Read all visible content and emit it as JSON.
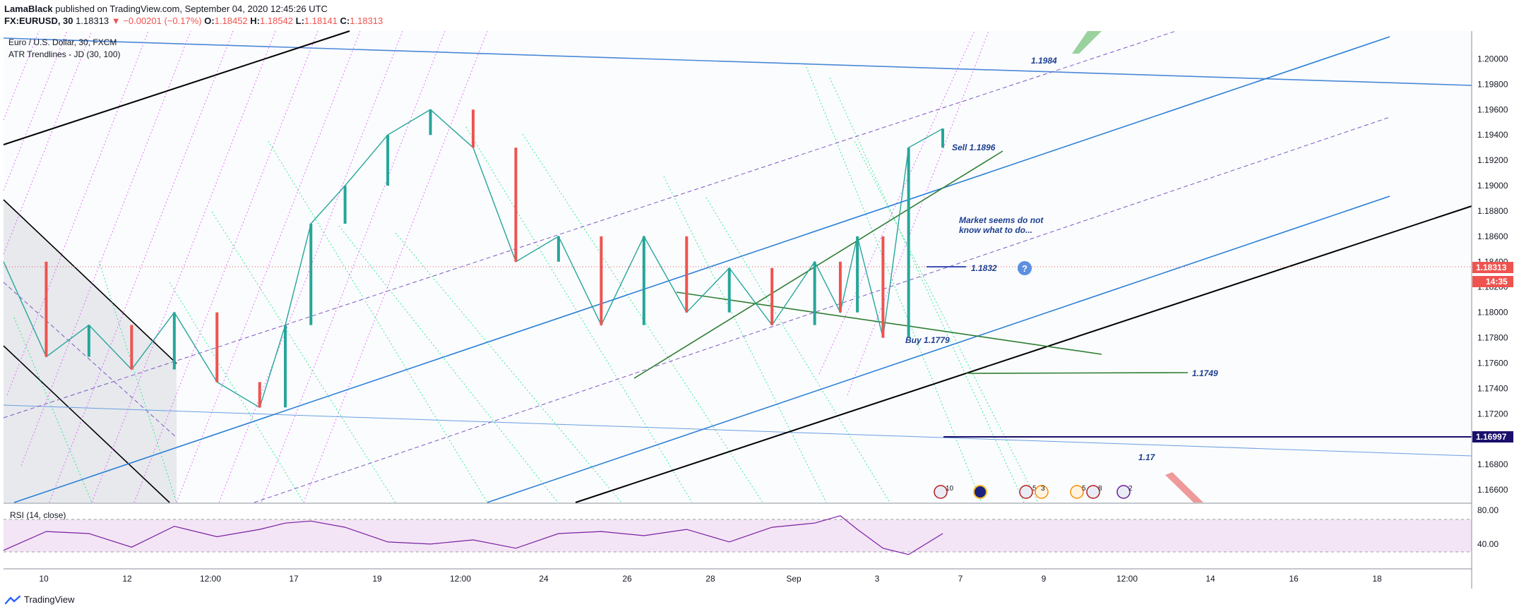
{
  "publish": {
    "author": "LamaBlack",
    "text": " published on TradingView.com, September 04, 2020 12:45:26 UTC"
  },
  "quote": {
    "symbol": "FX:EURUSD, 30",
    "last": "1.18313",
    "arrow": "▼",
    "change": "−0.00201 (−0.17%)",
    "open_label": "O:",
    "open": "1.18452",
    "high_label": "H:",
    "high": "1.18542",
    "low_label": "L:",
    "low": "1.18141",
    "close_label": "C:",
    "close": "1.18313"
  },
  "legend": {
    "series": "Euro / U.S. Dollar, 30, FXCM",
    "indicator": "ATR Trendlines - JD (30, 100)"
  },
  "rsi": {
    "label": "RSI (14, close)",
    "ticks": [
      "80.00",
      "40.00"
    ]
  },
  "footer": {
    "brand": "TradingView"
  },
  "chart_data": {
    "type": "line",
    "title": "Euro / U.S. Dollar, 30, FXCM",
    "price_axis": {
      "ticks": [
        "1.20000",
        "1.19800",
        "1.19600",
        "1.19400",
        "1.19200",
        "1.19000",
        "1.18800",
        "1.18600",
        "1.18400",
        "1.18200",
        "1.18000",
        "1.17800",
        "1.17600",
        "1.17400",
        "1.17200",
        "1.17000",
        "1.16800",
        "1.16600"
      ],
      "ylim": [
        1.165,
        1.2022
      ]
    },
    "time_axis": {
      "ticks": [
        "10",
        "12",
        "12:00",
        "17",
        "19",
        "12:00",
        "24",
        "26",
        "28",
        "Sep",
        "3",
        "7",
        "9",
        "12:00",
        "14",
        "16",
        "18"
      ]
    },
    "price_series": {
      "name": "EURUSD",
      "x": [
        0,
        5,
        10,
        15,
        20,
        25,
        30,
        33,
        36,
        40,
        45,
        50,
        55,
        60,
        65,
        70,
        75,
        80,
        85,
        90,
        95,
        98,
        100,
        103,
        106,
        110
      ],
      "values": [
        1.184,
        1.1765,
        1.179,
        1.1755,
        1.18,
        1.1745,
        1.1725,
        1.179,
        1.187,
        1.19,
        1.194,
        1.196,
        1.193,
        1.184,
        1.186,
        1.179,
        1.186,
        1.18,
        1.1835,
        1.179,
        1.184,
        1.18,
        1.186,
        1.178,
        1.193,
        1.1945
      ]
    },
    "rsi_series": {
      "name": "RSI (14, close)",
      "ylim": [
        25,
        85
      ],
      "x": [
        0,
        5,
        10,
        15,
        20,
        25,
        30,
        33,
        36,
        40,
        45,
        50,
        55,
        60,
        65,
        70,
        75,
        80,
        85,
        90,
        95,
        98,
        100,
        103,
        106,
        110
      ],
      "values": [
        42,
        60,
        58,
        45,
        65,
        55,
        62,
        68,
        70,
        64,
        50,
        48,
        52,
        44,
        58,
        60,
        56,
        62,
        50,
        64,
        68,
        75,
        62,
        44,
        38,
        58
      ]
    },
    "markers": [
      {
        "price": "1.18313",
        "color": "#ef5350"
      },
      {
        "price": "14:35",
        "color": "#ef5350"
      },
      {
        "price": "1.16997",
        "color": "#1a0f6b"
      }
    ],
    "annotations": [
      {
        "text": "1.1984",
        "color": "#1d3f8f"
      },
      {
        "text": "Sell 1.1896",
        "color": "#1d3f8f"
      },
      {
        "text": "Market seems do not",
        "color": "#1d3f8f"
      },
      {
        "text": "know what to do...",
        "color": "#1d3f8f"
      },
      {
        "text": "1.1832",
        "color": "#1d3f8f"
      },
      {
        "text": "Buy 1.1779",
        "color": "#1d3f8f"
      },
      {
        "text": "1.1749",
        "color": "#1d3f8f"
      },
      {
        "text": "1.17",
        "color": "#1d3f8f"
      }
    ],
    "events": [
      {
        "count": "10"
      },
      {
        "count": ""
      },
      {
        "count": "5"
      },
      {
        "count": "3"
      },
      {
        "count": "5"
      },
      {
        "count": "8"
      },
      {
        "count": "2"
      }
    ],
    "grid": false,
    "colors": {
      "up": "#26a69a",
      "down": "#ef5350",
      "channel": "#2a7fd8",
      "trend": "#000000",
      "magenta": "#e040fb",
      "teal": "#00e676",
      "green_line": "#2e7d32",
      "rsi": "#7b1fa2",
      "rsi_band": "#e1bee7"
    }
  }
}
